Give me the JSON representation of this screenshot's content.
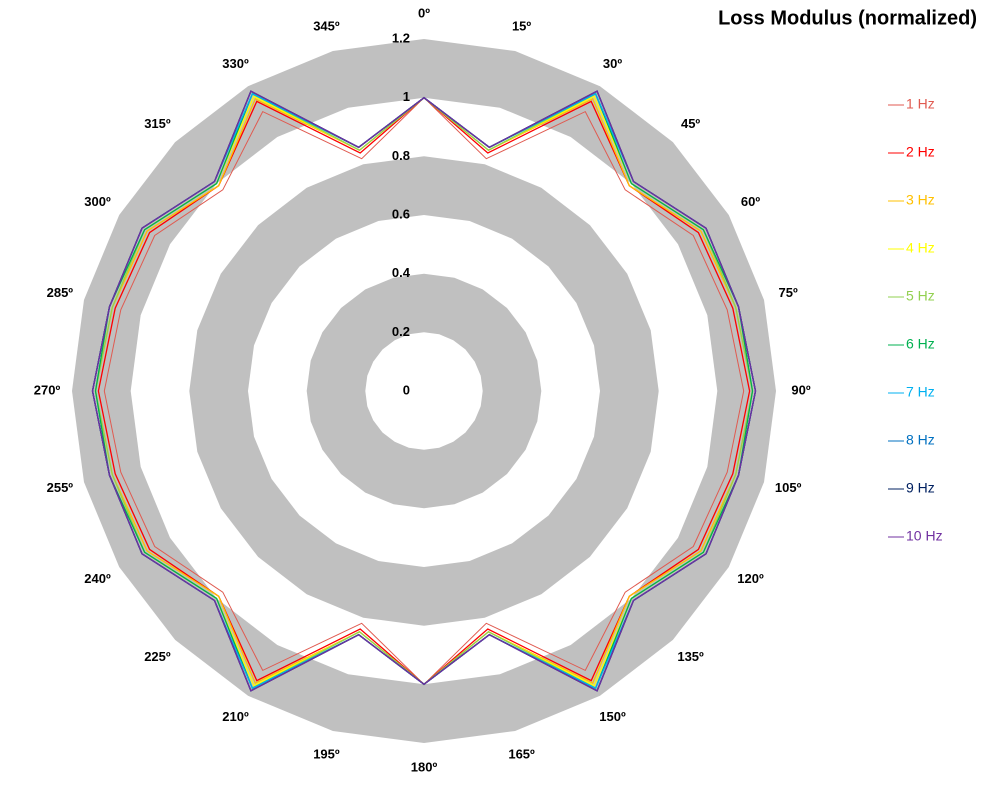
{
  "chart_data": {
    "type": "radar",
    "title": "Loss Modulus (normalized)",
    "categories": [
      "0º",
      "15º",
      "30º",
      "45º",
      "60º",
      "75º",
      "90º",
      "105º",
      "120º",
      "135º",
      "150º",
      "165º",
      "180º",
      "195º",
      "210º",
      "225º",
      "240º",
      "255º",
      "270º",
      "285º",
      "300º",
      "315º",
      "330º",
      "345º"
    ],
    "rlim": [
      0,
      1.2
    ],
    "rticks": [
      0,
      0.2,
      0.4,
      0.6,
      0.8,
      1,
      1.2
    ],
    "band_color": "#c0c0c0",
    "series": [
      {
        "name": "1 Hz",
        "color": "#e05a50",
        "values": [
          1,
          0.82,
          1.1,
          0.97,
          1.06,
          1.07,
          1.09,
          1.07,
          1.06,
          0.97,
          1.1,
          0.82,
          1,
          0.82,
          1.1,
          0.97,
          1.06,
          1.07,
          1.09,
          1.07,
          1.06,
          0.97,
          1.1,
          0.82
        ]
      },
      {
        "name": "2 Hz",
        "color": "#ff0000",
        "values": [
          1,
          0.84,
          1.14,
          0.99,
          1.08,
          1.09,
          1.11,
          1.09,
          1.08,
          0.99,
          1.14,
          0.84,
          1,
          0.84,
          1.14,
          0.99,
          1.08,
          1.09,
          1.11,
          1.09,
          1.08,
          0.99,
          1.14,
          0.84
        ]
      },
      {
        "name": "3 Hz",
        "color": "#ffc000",
        "values": [
          1,
          0.85,
          1.15,
          0.99,
          1.09,
          1.1,
          1.12,
          1.1,
          1.09,
          0.99,
          1.15,
          0.85,
          1,
          0.85,
          1.15,
          0.99,
          1.09,
          1.1,
          1.12,
          1.1,
          1.09,
          0.99,
          1.15,
          0.85
        ]
      },
      {
        "name": "4 Hz",
        "color": "#ffff00",
        "values": [
          1,
          0.85,
          1.16,
          1.0,
          1.1,
          1.1,
          1.12,
          1.1,
          1.1,
          1.0,
          1.16,
          0.85,
          1,
          0.85,
          1.16,
          1.0,
          1.1,
          1.1,
          1.12,
          1.1,
          1.1,
          1.0,
          1.16,
          0.85
        ]
      },
      {
        "name": "5 Hz",
        "color": "#92d050",
        "values": [
          1,
          0.85,
          1.17,
          1.0,
          1.1,
          1.1,
          1.12,
          1.1,
          1.1,
          1.0,
          1.17,
          0.85,
          1,
          0.85,
          1.17,
          1.0,
          1.1,
          1.1,
          1.12,
          1.1,
          1.1,
          1.0,
          1.17,
          0.85
        ]
      },
      {
        "name": "6 Hz",
        "color": "#00b050",
        "values": [
          1,
          0.86,
          1.17,
          1.0,
          1.1,
          1.11,
          1.12,
          1.11,
          1.1,
          1.0,
          1.17,
          0.86,
          1,
          0.86,
          1.17,
          1.0,
          1.1,
          1.11,
          1.12,
          1.11,
          1.1,
          1.0,
          1.17,
          0.86
        ]
      },
      {
        "name": "7 Hz",
        "color": "#00b0f0",
        "values": [
          1,
          0.86,
          1.17,
          1.01,
          1.11,
          1.11,
          1.13,
          1.11,
          1.11,
          1.01,
          1.17,
          0.86,
          1,
          0.86,
          1.17,
          1.01,
          1.11,
          1.11,
          1.13,
          1.11,
          1.11,
          1.01,
          1.17,
          0.86
        ]
      },
      {
        "name": "8 Hz",
        "color": "#0070c0",
        "values": [
          1,
          0.86,
          1.18,
          1.01,
          1.11,
          1.11,
          1.13,
          1.11,
          1.11,
          1.01,
          1.18,
          0.86,
          1,
          0.86,
          1.18,
          1.01,
          1.11,
          1.11,
          1.13,
          1.11,
          1.11,
          1.01,
          1.18,
          0.86
        ]
      },
      {
        "name": "9 Hz",
        "color": "#002060",
        "values": [
          1,
          0.86,
          1.18,
          1.01,
          1.11,
          1.11,
          1.13,
          1.11,
          1.11,
          1.01,
          1.18,
          0.86,
          1,
          0.86,
          1.18,
          1.01,
          1.11,
          1.11,
          1.13,
          1.11,
          1.11,
          1.01,
          1.18,
          0.86
        ]
      },
      {
        "name": "10 Hz",
        "color": "#7030a0",
        "values": [
          1,
          0.86,
          1.18,
          1.01,
          1.11,
          1.11,
          1.13,
          1.11,
          1.11,
          1.01,
          1.18,
          0.86,
          1,
          0.86,
          1.18,
          1.01,
          1.11,
          1.11,
          1.13,
          1.11,
          1.11,
          1.01,
          1.18,
          0.86
        ]
      }
    ]
  }
}
